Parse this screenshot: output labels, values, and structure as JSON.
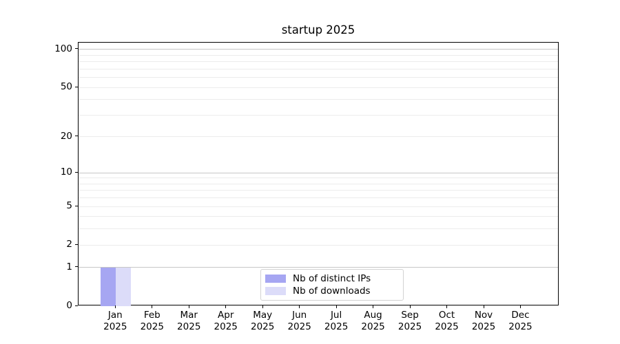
{
  "title": "startup 2025",
  "chart_data": {
    "type": "bar",
    "title": "startup 2025",
    "categories": [
      "Jan",
      "Feb",
      "Mar",
      "Apr",
      "May",
      "Jun",
      "Jul",
      "Aug",
      "Sep",
      "Oct",
      "Nov",
      "Dec"
    ],
    "category_year": "2025",
    "series": [
      {
        "name": "Nb of distinct IPs",
        "color": "#a6a6f2",
        "values": [
          1,
          0,
          0,
          0,
          0,
          0,
          0,
          0,
          0,
          0,
          0,
          0
        ]
      },
      {
        "name": "Nb of downloads",
        "color": "#dcdcf9",
        "values": [
          1,
          0,
          0,
          0,
          0,
          0,
          0,
          0,
          0,
          0,
          0,
          0
        ]
      }
    ],
    "yscale": "log1p",
    "ylim": [
      0,
      113
    ],
    "yticks": [
      0,
      1,
      2,
      5,
      10,
      20,
      50,
      100
    ],
    "gridlines_major": [
      1,
      10,
      100
    ],
    "gridlines_minor": [
      2,
      3,
      4,
      5,
      6,
      7,
      8,
      9,
      20,
      30,
      40,
      50,
      60,
      70,
      80,
      90
    ],
    "grid": true,
    "legend_position": "lower center",
    "colors": {
      "grid_major": "#c6c6c6",
      "grid_minor": "#ececec",
      "axis": "#000000",
      "legend_border": "#d2d2d2"
    }
  }
}
